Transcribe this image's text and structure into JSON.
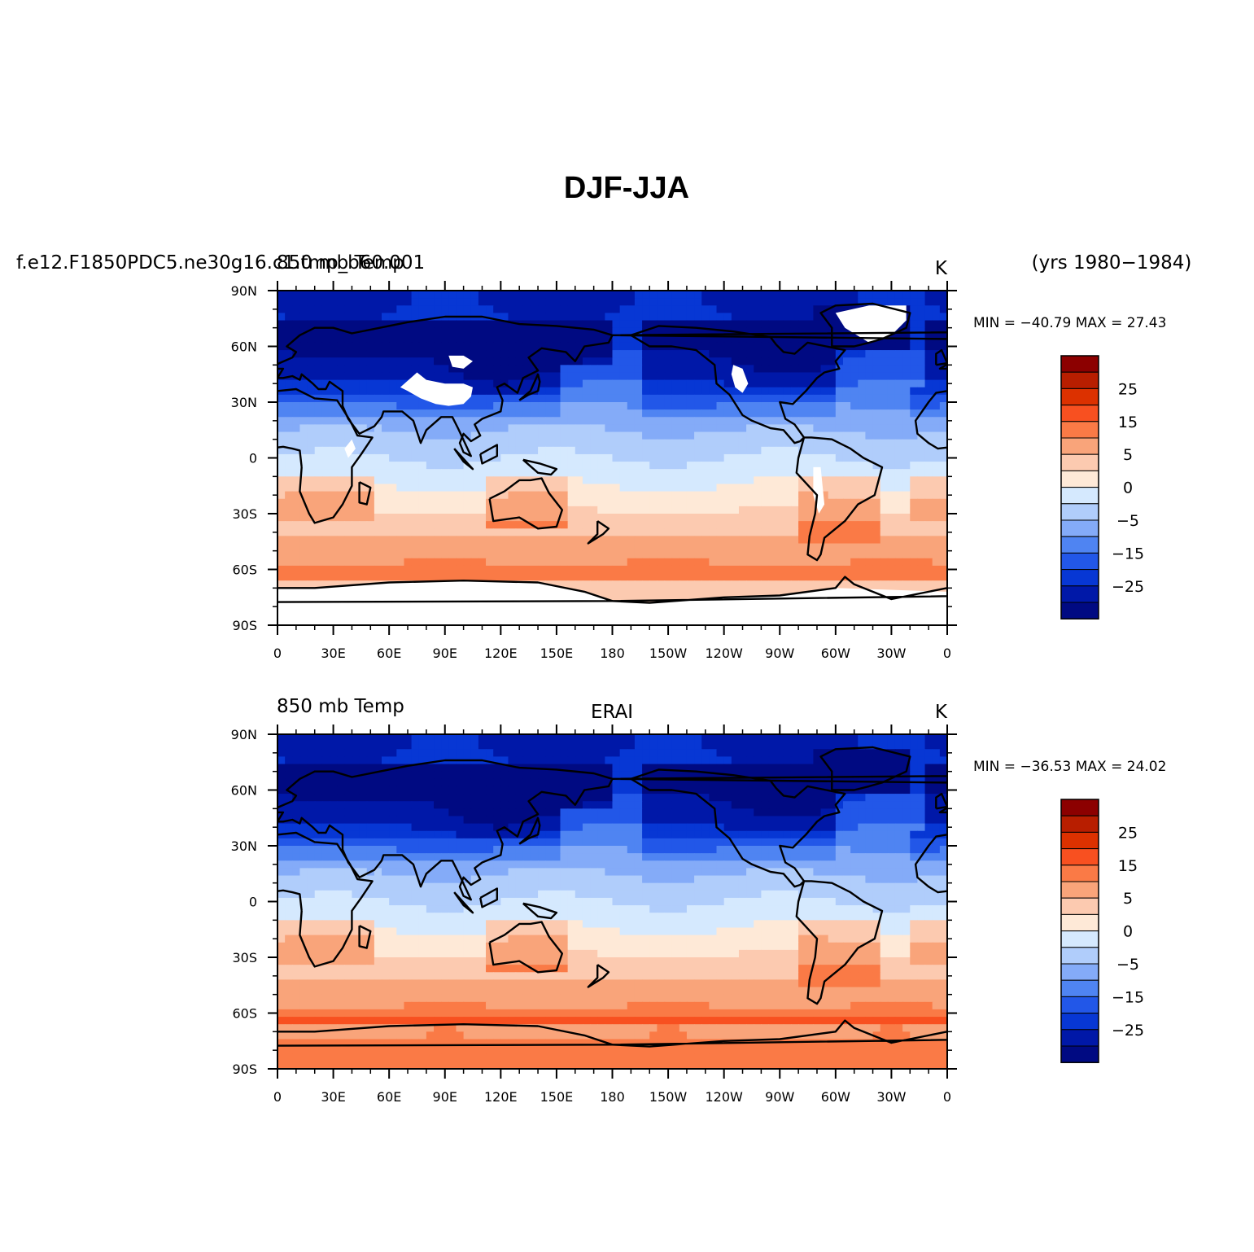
{
  "chart_data": {
    "type": "heatmap",
    "title": "DJF-JJA",
    "units_label": "K",
    "years_label": "(yrs 1980−1984)",
    "x_ticks": [
      "0",
      "30E",
      "60E",
      "90E",
      "120E",
      "150E",
      "180",
      "150W",
      "120W",
      "90W",
      "60W",
      "30W",
      "0"
    ],
    "y_ticks": [
      "90N",
      "60N",
      "30N",
      "0",
      "30S",
      "60S",
      "90S"
    ],
    "xlim": [
      0,
      360
    ],
    "ylim": [
      -90,
      90
    ],
    "contour_levels": [
      -30,
      -25,
      -20,
      -15,
      -10,
      -5,
      0,
      5,
      10,
      15,
      20,
      25,
      30
    ],
    "colorbar_labels": [
      "25",
      "15",
      "5",
      "0",
      "−5",
      "−15",
      "−25"
    ],
    "colorbar_colors": [
      "#8c0000",
      "#b81e00",
      "#dc3100",
      "#f85020",
      "#fa7a46",
      "#f9a47a",
      "#fccab0",
      "#fee9d7",
      "#d5e9fe",
      "#b0cdfb",
      "#84abf8",
      "#4f84f2",
      "#2257e8",
      "#0737d4",
      "#0018a8",
      "#000a82"
    ],
    "panels": [
      {
        "left_title_a": "f.e12.F1850PDC5.ne30g16.c1.tmp_b60.001",
        "left_title_b": "850 mb Temp",
        "center_title": "",
        "units": "K",
        "stats": "MIN = −40.79  MAX =   27.43",
        "min": -40.79,
        "max": 27.43,
        "missing_over_high_terrain": true
      },
      {
        "left_title_a": "850 mb Temp",
        "left_title_b": "",
        "center_title": "ERAI",
        "units": "K",
        "stats": "MIN = −36.53  MAX =   24.02",
        "min": -36.53,
        "max": 24.02,
        "missing_over_high_terrain": false
      }
    ]
  }
}
